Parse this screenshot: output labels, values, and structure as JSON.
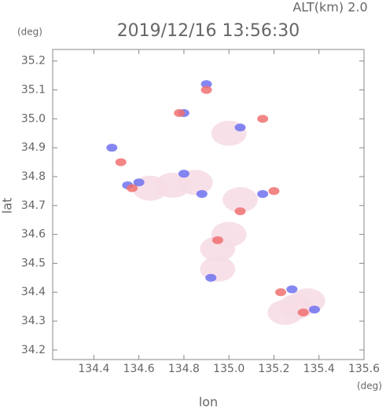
{
  "chart_data": {
    "type": "scatter",
    "title": "2019/12/16 13:56:30",
    "subtitle": "ALT(km) 2.0",
    "y_unit": "(deg)",
    "x_unit": "(deg)",
    "ylabel": "lat",
    "xlabel": "lon",
    "xlim": [
      134.217,
      135.6
    ],
    "ylim": [
      34.167,
      35.24
    ],
    "xticks": [
      134.4,
      134.6,
      134.8,
      {
        "value": 135,
        "label": "135.0"
      },
      135.2,
      135.4,
      135.6
    ],
    "yticks": [
      34.2,
      34.3,
      34.4,
      34.5,
      34.6,
      34.7,
      34.8,
      34.9,
      {
        "value": 35,
        "label": "35.0"
      },
      35.1,
      35.2
    ],
    "series": [
      {
        "color": "#f6dde6",
        "x": [
          134.85,
          134.75,
          134.65,
          134.95,
          135.0,
          135.3,
          135.25,
          135.35,
          135.0,
          135.05,
          134.95
        ],
        "values": [
          34.78,
          34.77,
          34.76,
          34.48,
          34.6,
          34.35,
          34.33,
          34.37,
          34.95,
          34.72,
          34.55
        ]
      },
      {
        "color": "#6f72f0",
        "x": [
          134.6,
          134.8,
          134.88,
          135.38,
          134.8,
          134.9,
          134.55,
          135.05,
          134.92,
          135.15,
          135.28,
          134.48
        ],
        "values": [
          34.78,
          34.81,
          34.74,
          34.34,
          35.02,
          35.12,
          34.77,
          34.97,
          34.45,
          34.74,
          34.41,
          34.9
        ]
      },
      {
        "color": "#f07070",
        "x": [
          134.57,
          135.15,
          134.78,
          135.05,
          135.23,
          134.9,
          134.52,
          135.2,
          134.95,
          135.33
        ],
        "values": [
          34.76,
          35.0,
          35.02,
          34.68,
          34.4,
          35.1,
          34.85,
          34.75,
          34.58,
          34.33
        ]
      }
    ]
  }
}
